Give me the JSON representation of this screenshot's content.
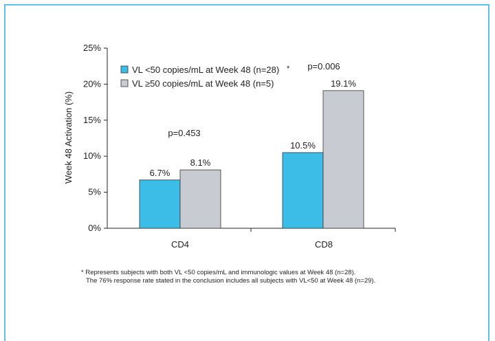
{
  "chart_data": {
    "type": "bar",
    "categories": [
      "CD4",
      "CD8"
    ],
    "series": [
      {
        "name": "VL <50 copies/mL at Week 48 (n=28)",
        "legend_marker": "*",
        "values": [
          6.7,
          10.5
        ],
        "color": "#3cbde8"
      },
      {
        "name": "VL ≥50 copies/mL at Week 48 (n=5)",
        "values": [
          8.1,
          19.1
        ],
        "color": "#c8cbd2"
      }
    ],
    "value_labels": [
      [
        "6.7%",
        "10.5%"
      ],
      [
        "8.1%",
        "19.1%"
      ]
    ],
    "ylabel": "Week 48 Activation (%)",
    "ylim": [
      0,
      25
    ],
    "yticks": [
      "0%",
      "5%",
      "10%",
      "15%",
      "20%",
      "25%"
    ],
    "annotations": [
      "p=0.453",
      "p=0.006"
    ],
    "grid": false,
    "legend_position": "top-left"
  },
  "footnotes": {
    "line1": "* Represents subjects with both VL <50 copies/mL and immunologic values at Week 48 (n=28).",
    "line2": "The 76% response rate stated in the conclusion includes all subjects with VL<50 at Week 48 (n=29)."
  }
}
